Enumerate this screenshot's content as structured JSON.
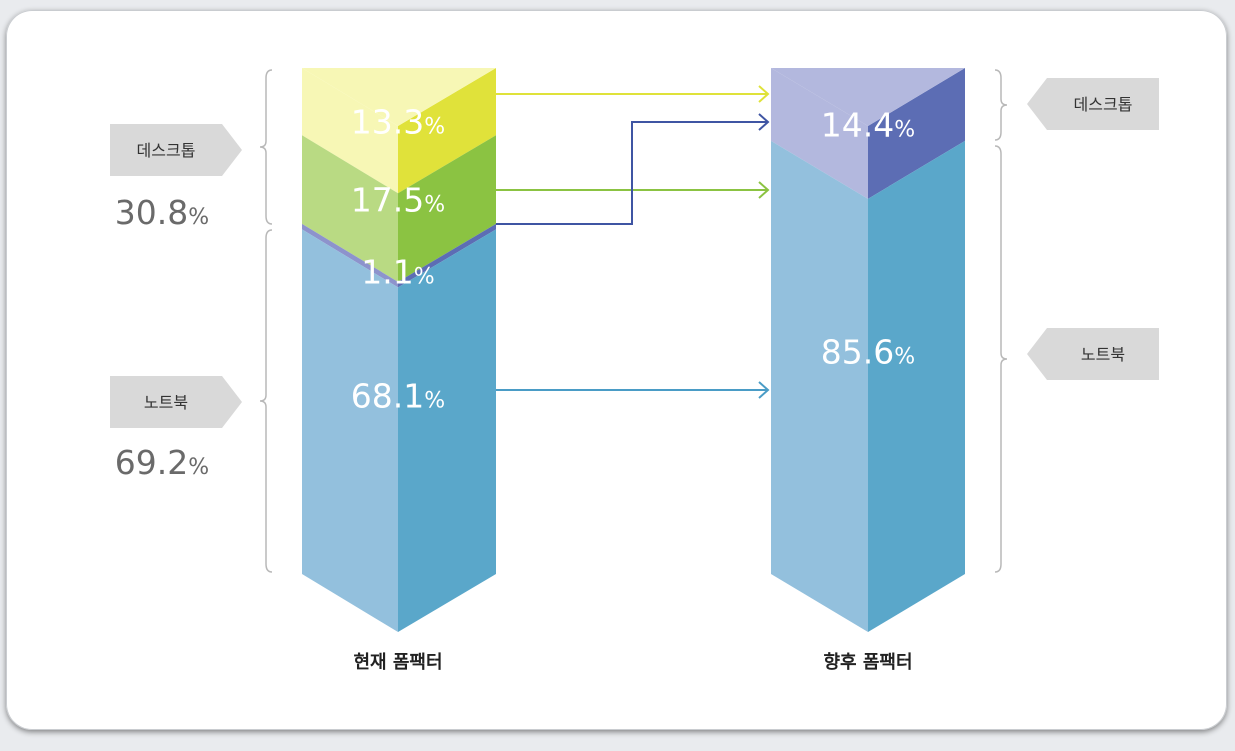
{
  "chart_data": {
    "type": "stacked-bar",
    "categories": [
      "현재 폼팩터",
      "향후 폼팩터"
    ],
    "columns": [
      {
        "label": "현재 폼팩터",
        "segments": [
          {
            "value": 13.3,
            "label": "13.3",
            "group": "데스크톱",
            "color_light": "#f7f7b5",
            "color_dark": "#e0e23a"
          },
          {
            "value": 17.5,
            "label": "17.5",
            "group": "데스크톱",
            "color_light": "#b9da83",
            "color_dark": "#8bc342"
          },
          {
            "value": 1.1,
            "label": "1.1",
            "group": "노트북",
            "color_light": "#8d93cc",
            "color_dark": "#5c6db4"
          },
          {
            "value": 68.1,
            "label": "68.1",
            "group": "노트북",
            "color_light": "#93c0dd",
            "color_dark": "#5aa7ca"
          }
        ]
      },
      {
        "label": "향후 폼팩터",
        "segments": [
          {
            "value": 14.4,
            "label": "14.4",
            "group": "데스크톱",
            "color_light": "#b3b8de",
            "color_dark": "#5c6db4"
          },
          {
            "value": 85.6,
            "label": "85.6",
            "group": "노트북",
            "color_light": "#93c0dd",
            "color_dark": "#5aa7ca"
          }
        ]
      }
    ],
    "groups_left": [
      {
        "name": "데스크톱",
        "total": "30.8"
      },
      {
        "name": "노트북",
        "total": "69.2"
      }
    ],
    "groups_right": [
      {
        "name": "데스크톱"
      },
      {
        "name": "노트북"
      }
    ],
    "percent_sign": "%",
    "flows": [
      {
        "from_segment": 0,
        "to_segment": 0,
        "color": "#dfe23a"
      },
      {
        "from_segment": 1,
        "to_segment": 1,
        "color": "#8bc342"
      },
      {
        "from_segment": 2,
        "to_segment": 0,
        "color": "#3f55a3"
      },
      {
        "from_segment": 3,
        "to_segment": 1,
        "color": "#4a9cc6"
      }
    ]
  }
}
